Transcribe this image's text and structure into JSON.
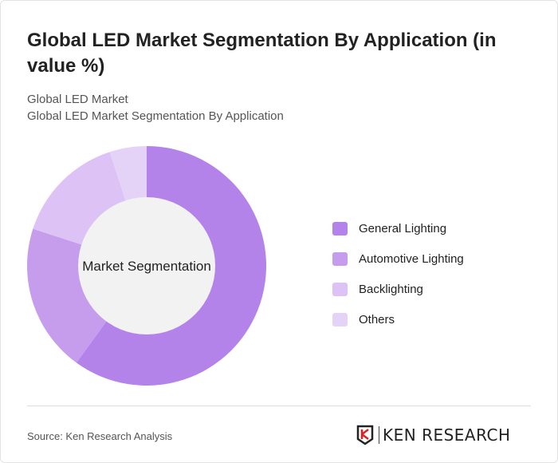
{
  "title": "Global LED Market Segmentation By Application (in value %)",
  "subtitle1": "Global LED Market",
  "subtitle2": "Global LED Market Segmentation By Application",
  "source": "Source: Ken Research Analysis",
  "logo_text": "KEN RESEARCH",
  "chart_data": {
    "type": "pie",
    "variant": "donut",
    "center_label": "Market Segmentation",
    "categories": [
      "General Lighting",
      "Automotive Lighting",
      "Backlighting",
      "Others"
    ],
    "values": [
      60,
      20,
      15,
      5
    ],
    "colors": [
      "#b383ea",
      "#c69ced",
      "#dcc2f5",
      "#e5d3f7"
    ],
    "legend_position": "right"
  }
}
